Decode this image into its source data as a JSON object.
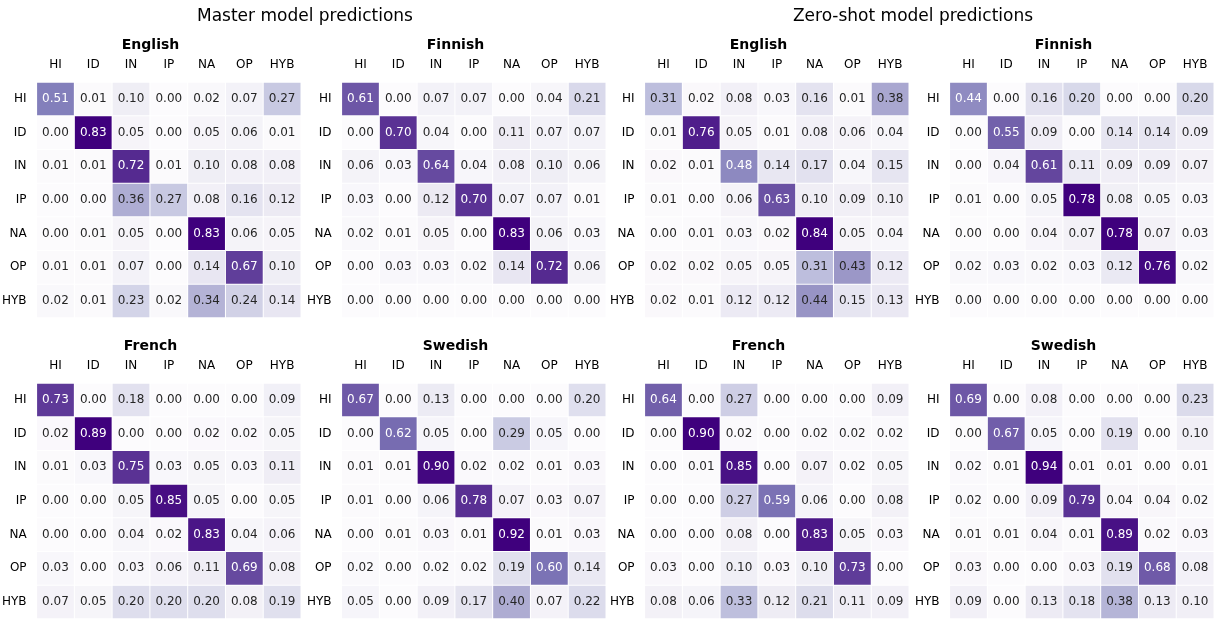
{
  "chart_data": [
    {
      "type": "heatmap",
      "title": "English",
      "annotations": [
        "Master model predictions"
      ],
      "categories": [
        "HI",
        "ID",
        "IN",
        "IP",
        "NA",
        "OP",
        "HYB"
      ],
      "y_categories": [
        "HI",
        "ID",
        "IN",
        "IP",
        "NA",
        "OP",
        "HYB"
      ],
      "cells": [
        [
          0.51,
          0.01,
          0.1,
          0.0,
          0.02,
          0.07,
          0.27
        ],
        [
          0.0,
          0.83,
          0.05,
          0.0,
          0.05,
          0.06,
          0.01
        ],
        [
          0.01,
          0.01,
          0.72,
          0.01,
          0.1,
          0.08,
          0.08
        ],
        [
          0.0,
          0.0,
          0.36,
          0.27,
          0.08,
          0.16,
          0.12
        ],
        [
          0.0,
          0.01,
          0.05,
          0.0,
          0.83,
          0.06,
          0.05
        ],
        [
          0.01,
          0.01,
          0.07,
          0.0,
          0.14,
          0.67,
          0.1
        ],
        [
          0.02,
          0.01,
          0.23,
          0.02,
          0.34,
          0.24,
          0.14
        ]
      ],
      "cell_labels": [
        [
          "0.51",
          "0.01",
          "0.10",
          "0.00",
          "0.02",
          "0.07",
          "0.27"
        ],
        [
          "0.00",
          "0.83",
          "0.05",
          "0.00",
          "0.05",
          "0.06",
          "0.01"
        ],
        [
          "0.01",
          "0.01",
          "0.72",
          "0.01",
          "0.10",
          "0.08",
          "0.08"
        ],
        [
          "0.00",
          "0.00",
          "0.36",
          "0.27",
          "0.08",
          "0.16",
          "0.12"
        ],
        [
          "0.00",
          "0.01",
          "0.05",
          "0.00",
          "0.83",
          "0.06",
          "0.05"
        ],
        [
          "0.01",
          "0.01",
          "0.07",
          "0.00",
          "0.14",
          "0.67",
          "0.10"
        ],
        [
          "0.02",
          "0.01",
          "0.23",
          "0.02",
          "0.34",
          "0.24",
          "0.14"
        ]
      ]
    },
    {
      "type": "heatmap",
      "title": "Finnish",
      "categories": [
        "HI",
        "ID",
        "IN",
        "IP",
        "NA",
        "OP",
        "HYB"
      ],
      "y_categories": [
        "HI",
        "ID",
        "IN",
        "IP",
        "NA",
        "OP",
        "HYB"
      ],
      "cells": [
        [
          0.61,
          0.0,
          0.07,
          0.07,
          0.0,
          0.04,
          0.21
        ],
        [
          0.0,
          0.7,
          0.04,
          0.0,
          0.11,
          0.07,
          0.07
        ],
        [
          0.06,
          0.03,
          0.64,
          0.04,
          0.08,
          0.1,
          0.06
        ],
        [
          0.03,
          0.0,
          0.12,
          0.7,
          0.07,
          0.07,
          0.01
        ],
        [
          0.02,
          0.01,
          0.05,
          0.0,
          0.83,
          0.06,
          0.03
        ],
        [
          0.0,
          0.03,
          0.03,
          0.02,
          0.14,
          0.72,
          0.06
        ],
        [
          0.0,
          0.0,
          0.0,
          0.0,
          0.0,
          0.0,
          0.0
        ]
      ],
      "cell_labels": [
        [
          "0.61",
          "0.00",
          "0.07",
          "0.07",
          "0.00",
          "0.04",
          "0.21"
        ],
        [
          "0.00",
          "0.70",
          "0.04",
          "0.00",
          "0.11",
          "0.07",
          "0.07"
        ],
        [
          "0.06",
          "0.03",
          "0.64",
          "0.04",
          "0.08",
          "0.10",
          "0.06"
        ],
        [
          "0.03",
          "0.00",
          "0.12",
          "0.70",
          "0.07",
          "0.07",
          "0.01"
        ],
        [
          "0.02",
          "0.01",
          "0.05",
          "0.00",
          "0.83",
          "0.06",
          "0.03"
        ],
        [
          "0.00",
          "0.03",
          "0.03",
          "0.02",
          "0.14",
          "0.72",
          "0.06"
        ],
        [
          "0.00",
          "0.00",
          "0.00",
          "0.00",
          "0.00",
          "0.00",
          "0.00"
        ]
      ]
    },
    {
      "type": "heatmap",
      "title": "English",
      "annotations": [
        "Zero-shot model predictions"
      ],
      "categories": [
        "HI",
        "ID",
        "IN",
        "IP",
        "NA",
        "OP",
        "HYB"
      ],
      "y_categories": [
        "HI",
        "ID",
        "IN",
        "IP",
        "NA",
        "OP",
        "HYB"
      ],
      "cells": [
        [
          0.31,
          0.02,
          0.08,
          0.03,
          0.16,
          0.01,
          0.38
        ],
        [
          0.01,
          0.76,
          0.05,
          0.01,
          0.08,
          0.06,
          0.04
        ],
        [
          0.02,
          0.01,
          0.48,
          0.14,
          0.17,
          0.04,
          0.15
        ],
        [
          0.01,
          0.0,
          0.06,
          0.63,
          0.1,
          0.09,
          0.1
        ],
        [
          0.0,
          0.01,
          0.03,
          0.02,
          0.84,
          0.05,
          0.04
        ],
        [
          0.02,
          0.02,
          0.05,
          0.05,
          0.31,
          0.43,
          0.12
        ],
        [
          0.02,
          0.01,
          0.12,
          0.12,
          0.44,
          0.15,
          0.13
        ]
      ],
      "cell_labels": [
        [
          "0.31",
          "0.02",
          "0.08",
          "0.03",
          "0.16",
          "0.01",
          "0.38"
        ],
        [
          "0.01",
          "0.76",
          "0.05",
          "0.01",
          "0.08",
          "0.06",
          "0.04"
        ],
        [
          "0.02",
          "0.01",
          "0.48",
          "0.14",
          "0.17",
          "0.04",
          "0.15"
        ],
        [
          "0.01",
          "0.00",
          "0.06",
          "0.63",
          "0.10",
          "0.09",
          "0.10"
        ],
        [
          "0.00",
          "0.01",
          "0.03",
          "0.02",
          "0.84",
          "0.05",
          "0.04"
        ],
        [
          "0.02",
          "0.02",
          "0.05",
          "0.05",
          "0.31",
          "0.43",
          "0.12"
        ],
        [
          "0.02",
          "0.01",
          "0.12",
          "0.12",
          "0.44",
          "0.15",
          "0.13"
        ]
      ]
    },
    {
      "type": "heatmap",
      "title": "Finnish",
      "categories": [
        "HI",
        "ID",
        "IN",
        "IP",
        "NA",
        "OP",
        "HYB"
      ],
      "y_categories": [
        "HI",
        "ID",
        "IN",
        "IP",
        "NA",
        "OP",
        "HYB"
      ],
      "cells": [
        [
          0.44,
          0.0,
          0.16,
          0.2,
          0.0,
          0.0,
          0.2
        ],
        [
          0.0,
          0.55,
          0.09,
          0.0,
          0.14,
          0.14,
          0.09
        ],
        [
          0.0,
          0.04,
          0.61,
          0.11,
          0.09,
          0.09,
          0.07
        ],
        [
          0.01,
          0.0,
          0.05,
          0.78,
          0.08,
          0.05,
          0.03
        ],
        [
          0.0,
          0.0,
          0.04,
          0.07,
          0.78,
          0.07,
          0.03
        ],
        [
          0.02,
          0.03,
          0.02,
          0.03,
          0.12,
          0.76,
          0.02
        ],
        [
          0.0,
          0.0,
          0.0,
          0.0,
          0.0,
          0.0,
          0.0
        ]
      ],
      "cell_labels": [
        [
          "0.44",
          "0.00",
          "0.16",
          "0.20",
          "0.00",
          "0.00",
          "0.20"
        ],
        [
          "0.00",
          "0.55",
          "0.09",
          "0.00",
          "0.14",
          "0.14",
          "0.09"
        ],
        [
          "0.00",
          "0.04",
          "0.61",
          "0.11",
          "0.09",
          "0.09",
          "0.07"
        ],
        [
          "0.01",
          "0.00",
          "0.05",
          "0.78",
          "0.08",
          "0.05",
          "0.03"
        ],
        [
          "0.00",
          "0.00",
          "0.04",
          "0.07",
          "0.78",
          "0.07",
          "0.03"
        ],
        [
          "0.02",
          "0.03",
          "0.02",
          "0.03",
          "0.12",
          "0.76",
          "0.02"
        ],
        [
          "0.00",
          "0.00",
          "0.00",
          "0.00",
          "0.00",
          "0.00",
          "0.00"
        ]
      ]
    },
    {
      "type": "heatmap",
      "title": "French",
      "categories": [
        "HI",
        "ID",
        "IN",
        "IP",
        "NA",
        "OP",
        "HYB"
      ],
      "y_categories": [
        "HI",
        "ID",
        "IN",
        "IP",
        "NA",
        "OP",
        "HYB"
      ],
      "cells": [
        [
          0.73,
          0.0,
          0.18,
          0.0,
          0.0,
          0.0,
          0.09
        ],
        [
          0.02,
          0.89,
          0.0,
          0.0,
          0.02,
          0.02,
          0.05
        ],
        [
          0.01,
          0.03,
          0.75,
          0.03,
          0.05,
          0.03,
          0.11
        ],
        [
          0.0,
          0.0,
          0.05,
          0.85,
          0.05,
          0.0,
          0.05
        ],
        [
          0.0,
          0.0,
          0.04,
          0.02,
          0.83,
          0.04,
          0.06
        ],
        [
          0.03,
          0.0,
          0.03,
          0.06,
          0.11,
          0.69,
          0.08
        ],
        [
          0.07,
          0.05,
          0.2,
          0.2,
          0.2,
          0.08,
          0.19
        ]
      ],
      "cell_labels": [
        [
          "0.73",
          "0.00",
          "0.18",
          "0.00",
          "0.00",
          "0.00",
          "0.09"
        ],
        [
          "0.02",
          "0.89",
          "0.00",
          "0.00",
          "0.02",
          "0.02",
          "0.05"
        ],
        [
          "0.01",
          "0.03",
          "0.75",
          "0.03",
          "0.05",
          "0.03",
          "0.11"
        ],
        [
          "0.00",
          "0.00",
          "0.05",
          "0.85",
          "0.05",
          "0.00",
          "0.05"
        ],
        [
          "0.00",
          "0.00",
          "0.04",
          "0.02",
          "0.83",
          "0.04",
          "0.06"
        ],
        [
          "0.03",
          "0.00",
          "0.03",
          "0.06",
          "0.11",
          "0.69",
          "0.08"
        ],
        [
          "0.07",
          "0.05",
          "0.20",
          "0.20",
          "0.20",
          "0.08",
          "0.19"
        ]
      ]
    },
    {
      "type": "heatmap",
      "title": "Swedish",
      "categories": [
        "HI",
        "ID",
        "IN",
        "IP",
        "NA",
        "OP",
        "HYB"
      ],
      "y_categories": [
        "HI",
        "ID",
        "IN",
        "IP",
        "NA",
        "OP",
        "HYB"
      ],
      "cells": [
        [
          0.67,
          0.0,
          0.13,
          0.0,
          0.0,
          0.0,
          0.2
        ],
        [
          0.0,
          0.62,
          0.05,
          0.0,
          0.29,
          0.05,
          0.0
        ],
        [
          0.01,
          0.01,
          0.9,
          0.02,
          0.02,
          0.01,
          0.03
        ],
        [
          0.01,
          0.0,
          0.06,
          0.78,
          0.07,
          0.03,
          0.07
        ],
        [
          0.0,
          0.01,
          0.03,
          0.01,
          0.92,
          0.01,
          0.03
        ],
        [
          0.02,
          0.0,
          0.02,
          0.02,
          0.19,
          0.6,
          0.14
        ],
        [
          0.05,
          0.0,
          0.09,
          0.17,
          0.4,
          0.07,
          0.22
        ]
      ],
      "cell_labels": [
        [
          "0.67",
          "0.00",
          "0.13",
          "0.00",
          "0.00",
          "0.00",
          "0.20"
        ],
        [
          "0.00",
          "0.62",
          "0.05",
          "0.00",
          "0.29",
          "0.05",
          "0.00"
        ],
        [
          "0.01",
          "0.01",
          "0.90",
          "0.02",
          "0.02",
          "0.01",
          "0.03"
        ],
        [
          "0.01",
          "0.00",
          "0.06",
          "0.78",
          "0.07",
          "0.03",
          "0.07"
        ],
        [
          "0.00",
          "0.01",
          "0.03",
          "0.01",
          "0.92",
          "0.01",
          "0.03"
        ],
        [
          "0.02",
          "0.00",
          "0.02",
          "0.02",
          "0.19",
          "0.60",
          "0.14"
        ],
        [
          "0.05",
          "0.00",
          "0.09",
          "0.17",
          "0.40",
          "0.07",
          "0.22"
        ]
      ]
    },
    {
      "type": "heatmap",
      "title": "French",
      "categories": [
        "HI",
        "ID",
        "IN",
        "IP",
        "NA",
        "OP",
        "HYB"
      ],
      "y_categories": [
        "HI",
        "ID",
        "IN",
        "IP",
        "NA",
        "OP",
        "HYB"
      ],
      "cells": [
        [
          0.64,
          0.0,
          0.27,
          0.0,
          0.0,
          0.0,
          0.09
        ],
        [
          0.0,
          0.9,
          0.02,
          0.0,
          0.02,
          0.02,
          0.02
        ],
        [
          0.0,
          0.01,
          0.85,
          0.0,
          0.07,
          0.02,
          0.05
        ],
        [
          0.0,
          0.0,
          0.27,
          0.59,
          0.06,
          0.0,
          0.08
        ],
        [
          0.0,
          0.0,
          0.08,
          0.0,
          0.83,
          0.05,
          0.03
        ],
        [
          0.03,
          0.0,
          0.1,
          0.03,
          0.1,
          0.73,
          0.0
        ],
        [
          0.08,
          0.06,
          0.33,
          0.12,
          0.21,
          0.11,
          0.09
        ]
      ],
      "cell_labels": [
        [
          "0.64",
          "0.00",
          "0.27",
          "0.00",
          "0.00",
          "0.00",
          "0.09"
        ],
        [
          "0.00",
          "0.90",
          "0.02",
          "0.00",
          "0.02",
          "0.02",
          "0.02"
        ],
        [
          "0.00",
          "0.01",
          "0.85",
          "0.00",
          "0.07",
          "0.02",
          "0.05"
        ],
        [
          "0.00",
          "0.00",
          "0.27",
          "0.59",
          "0.06",
          "0.00",
          "0.08"
        ],
        [
          "0.00",
          "0.00",
          "0.08",
          "0.00",
          "0.83",
          "0.05",
          "0.03"
        ],
        [
          "0.03",
          "0.00",
          "0.10",
          "0.03",
          "0.10",
          "0.73",
          "0.00"
        ],
        [
          "0.08",
          "0.06",
          "0.33",
          "0.12",
          "0.21",
          "0.11",
          "0.09"
        ]
      ]
    },
    {
      "type": "heatmap",
      "title": "Swedish",
      "categories": [
        "HI",
        "ID",
        "IN",
        "IP",
        "NA",
        "OP",
        "HYB"
      ],
      "y_categories": [
        "HI",
        "ID",
        "IN",
        "IP",
        "NA",
        "OP",
        "HYB"
      ],
      "cells": [
        [
          0.69,
          0.0,
          0.08,
          0.0,
          0.0,
          0.0,
          0.23
        ],
        [
          0.0,
          0.67,
          0.05,
          0.0,
          0.19,
          0.0,
          0.1
        ],
        [
          0.02,
          0.01,
          0.94,
          0.01,
          0.01,
          0.0,
          0.01
        ],
        [
          0.02,
          0.0,
          0.09,
          0.79,
          0.04,
          0.04,
          0.02
        ],
        [
          0.01,
          0.01,
          0.04,
          0.01,
          0.89,
          0.02,
          0.03
        ],
        [
          0.03,
          0.0,
          0.0,
          0.03,
          0.19,
          0.68,
          0.08
        ],
        [
          0.09,
          0.0,
          0.13,
          0.18,
          0.38,
          0.13,
          0.1
        ]
      ],
      "cell_labels": [
        [
          "0.69",
          "0.00",
          "0.08",
          "0.00",
          "0.00",
          "0.00",
          "0.23"
        ],
        [
          "0.00",
          "0.67",
          "0.05",
          "0.00",
          "0.19",
          "0.00",
          "0.10"
        ],
        [
          "0.02",
          "0.01",
          "0.94",
          "0.01",
          "0.01",
          "0.00",
          "0.01"
        ],
        [
          "0.02",
          "0.00",
          "0.09",
          "0.79",
          "0.04",
          "0.04",
          "0.02"
        ],
        [
          "0.01",
          "0.01",
          "0.04",
          "0.01",
          "0.89",
          "0.02",
          "0.03"
        ],
        [
          "0.03",
          "0.00",
          "0.00",
          "0.03",
          "0.19",
          "0.68",
          "0.08"
        ],
        [
          "0.09",
          "0.00",
          "0.13",
          "0.18",
          "0.38",
          "0.13",
          "0.10"
        ]
      ]
    }
  ]
}
